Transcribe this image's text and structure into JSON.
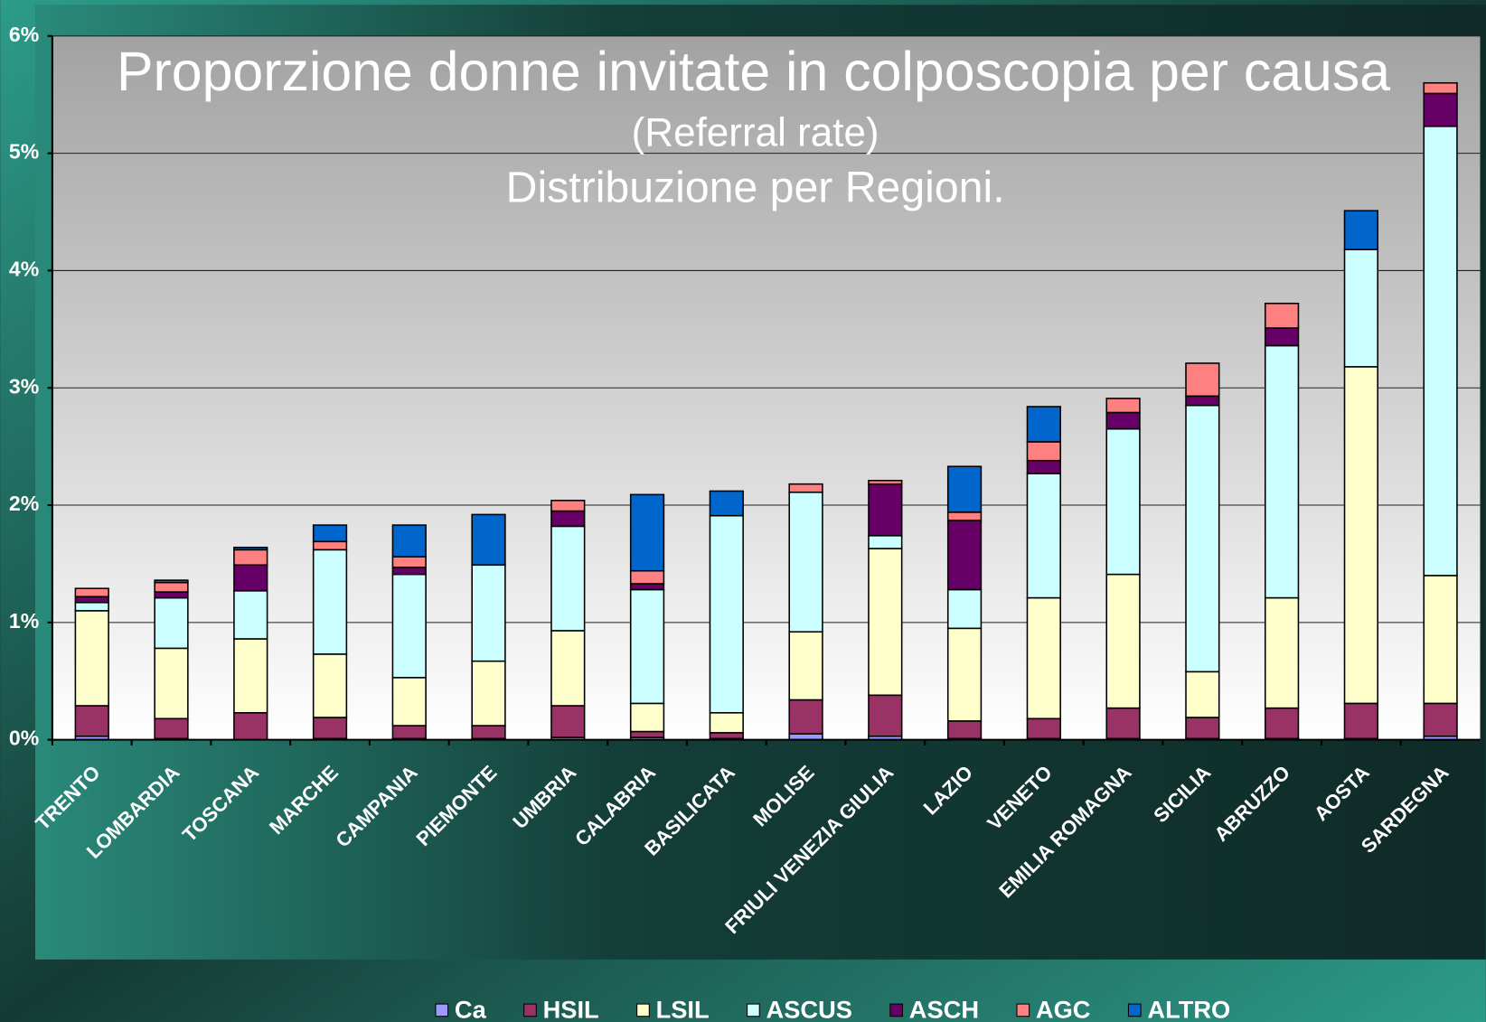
{
  "chart_data": {
    "type": "stacked_bar",
    "title": "Proporzione donne invitate in colposcopia per causa",
    "subtitle": [
      "(Referral rate)",
      "Distribuzione per Regioni."
    ],
    "categories": [
      "TRENTO",
      "LOMBARDIA",
      "TOSCANA",
      "MARCHE",
      "CAMPANIA",
      "PIEMONTE",
      "UMBRIA",
      "CALABRIA",
      "BASILICATA",
      "MOLISE",
      "FRIULI VENEZIA GIULIA",
      "LAZIO",
      "VENETO",
      "EMILIA ROMAGNA",
      "SICILIA",
      "ABRUZZO",
      "AOSTA",
      "SARDEGNA"
    ],
    "series": [
      {
        "name": "Ca",
        "color": "#9999ff",
        "values": [
          0.03,
          0.01,
          0,
          0.01,
          0.01,
          0.01,
          0.02,
          0.02,
          0.01,
          0.05,
          0.03,
          0.01,
          0.01,
          0.01,
          0.01,
          0.01,
          0.01,
          0.03
        ]
      },
      {
        "name": "HSIL",
        "color": "#993366",
        "values": [
          0.26,
          0.17,
          0.23,
          0.18,
          0.11,
          0.11,
          0.27,
          0.05,
          0.05,
          0.29,
          0.35,
          0.15,
          0.17,
          0.26,
          0.18,
          0.26,
          0.3,
          0.28
        ]
      },
      {
        "name": "LSIL",
        "color": "#ffffcc",
        "values": [
          0.81,
          0.6,
          0.63,
          0.54,
          0.41,
          0.55,
          0.64,
          0.24,
          0.17,
          0.58,
          1.25,
          0.79,
          1.03,
          1.14,
          0.39,
          0.94,
          2.87,
          1.09
        ]
      },
      {
        "name": "ASCUS",
        "color": "#ccffff",
        "values": [
          0.07,
          0.43,
          0.41,
          0.89,
          0.88,
          0.82,
          0.89,
          0.97,
          1.68,
          1.19,
          0.11,
          0.33,
          1.06,
          1.24,
          2.27,
          2.15,
          1.0,
          3.83
        ]
      },
      {
        "name": "ASCH",
        "color": "#660066",
        "values": [
          0.05,
          0.05,
          0.22,
          0,
          0.06,
          0,
          0.13,
          0.05,
          0,
          0,
          0.44,
          0.59,
          0.11,
          0.14,
          0.08,
          0.15,
          0,
          0.28
        ]
      },
      {
        "name": "AGC",
        "color": "#ff8080",
        "values": [
          0.07,
          0.08,
          0.13,
          0.07,
          0.09,
          0,
          0.09,
          0.11,
          0,
          0.07,
          0.03,
          0.07,
          0.16,
          0.12,
          0.28,
          0.21,
          0,
          0.09
        ]
      },
      {
        "name": "ALTRO",
        "color": "#0066cc",
        "values": [
          0,
          0.02,
          0.02,
          0.14,
          0.27,
          0.43,
          0,
          0.65,
          0.21,
          0,
          0,
          0.39,
          0.3,
          0,
          0,
          0,
          0.33,
          0
        ]
      }
    ],
    "ylim": [
      0,
      6
    ],
    "yticks": [
      {
        "value": 0,
        "label": "0%"
      },
      {
        "value": 1,
        "label": "1%"
      },
      {
        "value": 2,
        "label": "2%"
      },
      {
        "value": 3,
        "label": "3%"
      },
      {
        "value": 4,
        "label": "4%"
      },
      {
        "value": 5,
        "label": "5%"
      },
      {
        "value": 6,
        "label": "6%"
      }
    ],
    "grid": true,
    "legend": "bottom"
  }
}
